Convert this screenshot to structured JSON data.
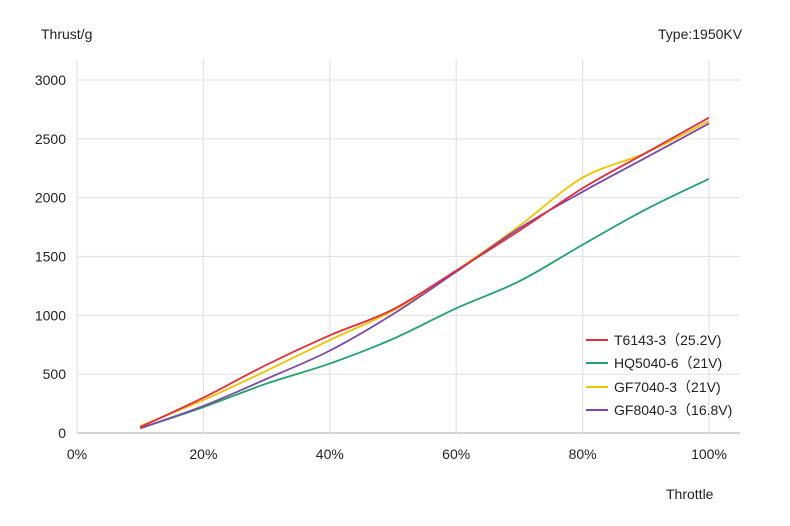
{
  "chart_data": {
    "type": "line",
    "ylabel": "Thrust/g",
    "xlabel": "Throttle",
    "annotation": "Type:1950KV",
    "x": [
      10,
      20,
      30,
      40,
      50,
      60,
      70,
      80,
      90,
      100
    ],
    "xlim": [
      0,
      100
    ],
    "ylim": [
      0,
      3000
    ],
    "xticks": [
      "0%",
      "20%",
      "40%",
      "60%",
      "80%",
      "100%"
    ],
    "xtick_values": [
      0,
      20,
      40,
      60,
      80,
      100
    ],
    "yticks": [
      "0",
      "500",
      "1000",
      "1500",
      "2000",
      "2500",
      "3000"
    ],
    "ytick_values": [
      0,
      500,
      1000,
      1500,
      2000,
      2500,
      3000
    ],
    "grid": true,
    "legend_position": "bottom-right",
    "series": [
      {
        "name": "T6143-3（25.2V)",
        "color": "#e62b3c",
        "values": [
          50,
          300,
          580,
          830,
          1050,
          1380,
          1720,
          2080,
          2380,
          2680
        ]
      },
      {
        "name": "HQ5040-6（21V)",
        "color": "#1fa46a",
        "values": [
          40,
          220,
          420,
          590,
          800,
          1060,
          1290,
          1600,
          1900,
          2160
        ]
      },
      {
        "name": "GF7040-3（21V)",
        "color": "#f2c200",
        "values": [
          60,
          280,
          530,
          790,
          1040,
          1380,
          1760,
          2170,
          2380,
          2650
        ]
      },
      {
        "name": "GF8040-3（16.8V)",
        "color": "#7b4aa8",
        "values": [
          40,
          230,
          460,
          700,
          1010,
          1370,
          1740,
          2050,
          2340,
          2630
        ]
      }
    ]
  }
}
